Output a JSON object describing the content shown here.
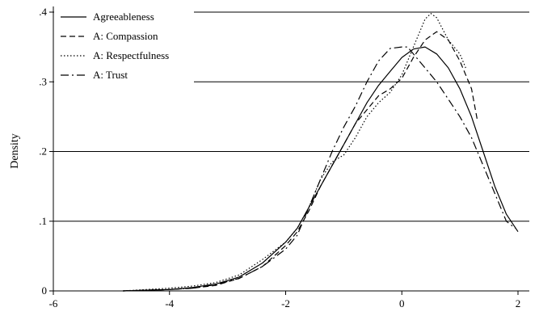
{
  "chart_data": {
    "type": "line",
    "title": "",
    "xlabel": "",
    "ylabel": "Density",
    "xlim": [
      -6,
      2
    ],
    "ylim": [
      0,
      0.4
    ],
    "x_ticks": [
      -6,
      -4,
      -2,
      0,
      2
    ],
    "x_tick_labels": [
      "-6",
      "-4",
      "-2",
      "0",
      "2"
    ],
    "y_ticks": [
      0,
      0.1,
      0.2,
      0.3,
      0.4
    ],
    "y_tick_labels": [
      "0",
      ".1",
      ".2",
      ".3",
      ".4"
    ],
    "grid": "horizontal",
    "legend_position": "top-left",
    "series": [
      {
        "name": "Agreeableness",
        "style": "solid",
        "points": [
          [
            -4.8,
            0
          ],
          [
            -4.4,
            0.001
          ],
          [
            -4.0,
            0.002
          ],
          [
            -3.6,
            0.005
          ],
          [
            -3.2,
            0.01
          ],
          [
            -2.8,
            0.02
          ],
          [
            -2.4,
            0.04
          ],
          [
            -2.0,
            0.07
          ],
          [
            -1.8,
            0.09
          ],
          [
            -1.6,
            0.12
          ],
          [
            -1.4,
            0.15
          ],
          [
            -1.2,
            0.18
          ],
          [
            -1.0,
            0.21
          ],
          [
            -0.8,
            0.24
          ],
          [
            -0.6,
            0.27
          ],
          [
            -0.4,
            0.295
          ],
          [
            -0.2,
            0.315
          ],
          [
            0.0,
            0.335
          ],
          [
            0.2,
            0.347
          ],
          [
            0.4,
            0.35
          ],
          [
            0.6,
            0.34
          ],
          [
            0.8,
            0.32
          ],
          [
            1.0,
            0.29
          ],
          [
            1.2,
            0.25
          ],
          [
            1.4,
            0.2
          ],
          [
            1.6,
            0.15
          ],
          [
            1.8,
            0.11
          ],
          [
            2.0,
            0.085
          ]
        ]
      },
      {
        "name": "A: Compassion",
        "style": "dashed",
        "points": [
          [
            -4.8,
            0
          ],
          [
            -4.4,
            0.001
          ],
          [
            -4.0,
            0.002
          ],
          [
            -3.6,
            0.004
          ],
          [
            -3.2,
            0.008
          ],
          [
            -2.8,
            0.018
          ],
          [
            -2.4,
            0.035
          ],
          [
            -2.0,
            0.065
          ],
          [
            -1.8,
            0.085
          ],
          [
            -1.6,
            0.115
          ],
          [
            -1.4,
            0.15
          ],
          [
            -1.2,
            0.18
          ],
          [
            -1.0,
            0.21
          ],
          [
            -0.8,
            0.24
          ],
          [
            -0.6,
            0.26
          ],
          [
            -0.4,
            0.28
          ],
          [
            -0.2,
            0.29
          ],
          [
            0.0,
            0.305
          ],
          [
            0.2,
            0.335
          ],
          [
            0.4,
            0.36
          ],
          [
            0.6,
            0.372
          ],
          [
            0.8,
            0.36
          ],
          [
            1.0,
            0.33
          ],
          [
            1.2,
            0.29
          ],
          [
            1.3,
            0.245
          ]
        ]
      },
      {
        "name": "A: Respectfulness",
        "style": "dotted",
        "points": [
          [
            -4.8,
            0
          ],
          [
            -4.4,
            0.002
          ],
          [
            -4.0,
            0.004
          ],
          [
            -3.6,
            0.007
          ],
          [
            -3.2,
            0.012
          ],
          [
            -2.8,
            0.023
          ],
          [
            -2.4,
            0.045
          ],
          [
            -2.0,
            0.07
          ],
          [
            -1.8,
            0.09
          ],
          [
            -1.6,
            0.12
          ],
          [
            -1.4,
            0.16
          ],
          [
            -1.2,
            0.185
          ],
          [
            -1.0,
            0.195
          ],
          [
            -0.8,
            0.22
          ],
          [
            -0.6,
            0.25
          ],
          [
            -0.4,
            0.27
          ],
          [
            -0.2,
            0.285
          ],
          [
            0.0,
            0.31
          ],
          [
            0.2,
            0.35
          ],
          [
            0.4,
            0.39
          ],
          [
            0.5,
            0.398
          ],
          [
            0.6,
            0.392
          ],
          [
            0.8,
            0.36
          ],
          [
            1.0,
            0.34
          ],
          [
            1.1,
            0.32
          ]
        ]
      },
      {
        "name": "A: Trust",
        "style": "dashdot",
        "points": [
          [
            -4.8,
            0
          ],
          [
            -4.4,
            0.001
          ],
          [
            -4.0,
            0.002
          ],
          [
            -3.6,
            0.004
          ],
          [
            -3.2,
            0.009
          ],
          [
            -2.8,
            0.018
          ],
          [
            -2.4,
            0.035
          ],
          [
            -2.0,
            0.06
          ],
          [
            -1.8,
            0.08
          ],
          [
            -1.6,
            0.12
          ],
          [
            -1.4,
            0.16
          ],
          [
            -1.2,
            0.2
          ],
          [
            -1.0,
            0.235
          ],
          [
            -0.8,
            0.265
          ],
          [
            -0.6,
            0.3
          ],
          [
            -0.4,
            0.33
          ],
          [
            -0.2,
            0.348
          ],
          [
            0.0,
            0.35
          ],
          [
            0.1,
            0.35
          ],
          [
            0.2,
            0.34
          ],
          [
            0.4,
            0.32
          ],
          [
            0.6,
            0.3
          ],
          [
            0.8,
            0.275
          ],
          [
            1.0,
            0.25
          ],
          [
            1.2,
            0.22
          ],
          [
            1.4,
            0.18
          ],
          [
            1.6,
            0.14
          ],
          [
            1.8,
            0.1
          ],
          [
            1.95,
            0.09
          ]
        ]
      }
    ]
  }
}
